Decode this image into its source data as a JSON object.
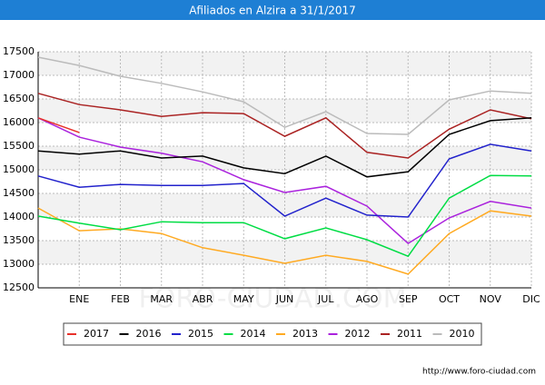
{
  "chart_data": {
    "type": "line",
    "title": "Afiliados en Alzira a 31/1/2017",
    "categories": [
      null,
      "ENE",
      "FEB",
      "MAR",
      "ABR",
      "MAY",
      "JUN",
      "JUL",
      "AGO",
      "SEP",
      "OCT",
      "NOV",
      "DIC"
    ],
    "ylim": [
      12500,
      17500
    ],
    "yticks": [
      12500,
      13000,
      13500,
      14000,
      14500,
      15000,
      15500,
      16000,
      16500,
      17000,
      17500
    ],
    "grid": true,
    "series": [
      {
        "name": "2017",
        "color": "#e8312a",
        "values": [
          16100,
          15790,
          null,
          null,
          null,
          null,
          null,
          null,
          null,
          null,
          null,
          null,
          null
        ]
      },
      {
        "name": "2016",
        "color": "#000000",
        "values": [
          15400,
          15330,
          15400,
          15250,
          15290,
          15040,
          14920,
          15290,
          14850,
          14960,
          15750,
          16040,
          16100
        ]
      },
      {
        "name": "2015",
        "color": "#2222cc",
        "values": [
          14870,
          14630,
          14690,
          14670,
          14670,
          14710,
          14020,
          14400,
          14040,
          14000,
          15230,
          15540,
          15400
        ]
      },
      {
        "name": "2014",
        "color": "#00dd44",
        "values": [
          14020,
          13870,
          13730,
          13900,
          13880,
          13880,
          13540,
          13770,
          13520,
          13170,
          14400,
          14880,
          14870
        ]
      },
      {
        "name": "2013",
        "color": "#ffaa22",
        "values": [
          14190,
          13710,
          13750,
          13650,
          13350,
          13190,
          13020,
          13190,
          13060,
          12790,
          13650,
          14130,
          14020
        ]
      },
      {
        "name": "2012",
        "color": "#aa22dd",
        "values": [
          16100,
          15690,
          15480,
          15350,
          15170,
          14790,
          14520,
          14650,
          14230,
          13440,
          13980,
          14330,
          14190
        ]
      },
      {
        "name": "2011",
        "color": "#aa2222",
        "values": [
          16620,
          16380,
          16270,
          16130,
          16210,
          16190,
          15710,
          16100,
          15370,
          15250,
          15860,
          16270,
          16080
        ]
      },
      {
        "name": "2010",
        "color": "#bbbbbb",
        "values": [
          17385,
          17210,
          16980,
          16830,
          16650,
          16440,
          15900,
          16230,
          15770,
          15750,
          16480,
          16670,
          16620
        ]
      }
    ],
    "watermark": "FORO-CIUDAD.COM",
    "footer": "http://www.foro-ciudad.com"
  }
}
